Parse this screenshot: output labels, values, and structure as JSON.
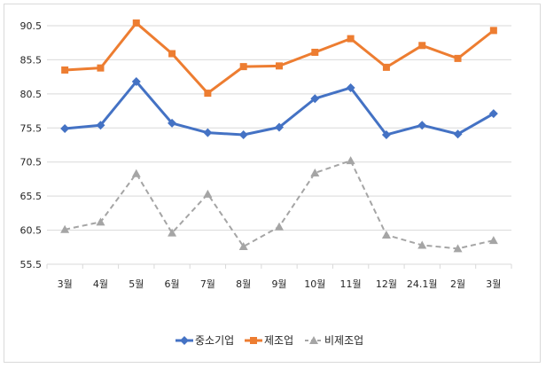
{
  "chart_data": {
    "type": "line",
    "title": "",
    "xlabel": "",
    "ylabel": "",
    "categories": [
      "3월",
      "4월",
      "5월",
      "6월",
      "7월",
      "8월",
      "9월",
      "10월",
      "11월",
      "12월",
      "24.1월",
      "2월",
      "3월"
    ],
    "yticks": [
      "90.5",
      "85.5",
      "80.5",
      "75.5",
      "70.5",
      "65.5",
      "60.5",
      "55.5"
    ],
    "ylim": [
      55.5,
      90.5
    ],
    "grid": true,
    "legend": "bottom",
    "series": [
      {
        "name": "중소기업",
        "color": "#4472C4",
        "marker": "diamond",
        "dash": "solid",
        "values": [
          75.4,
          75.9,
          82.3,
          76.2,
          74.8,
          74.5,
          75.6,
          79.8,
          81.4,
          74.5,
          75.9,
          74.6,
          77.6
        ]
      },
      {
        "name": "제조업",
        "color": "#ED7D31",
        "marker": "square",
        "dash": "solid",
        "values": [
          84.0,
          84.3,
          90.9,
          86.4,
          80.6,
          84.5,
          84.6,
          86.6,
          88.6,
          84.4,
          87.6,
          85.7,
          89.8
        ]
      },
      {
        "name": "비제조업",
        "color": "#A5A5A5",
        "marker": "triangle",
        "dash": "dashed",
        "values": [
          60.6,
          61.7,
          68.8,
          60.1,
          65.8,
          58.1,
          61.0,
          68.9,
          70.7,
          59.8,
          58.3,
          57.8,
          59.0
        ]
      }
    ]
  }
}
